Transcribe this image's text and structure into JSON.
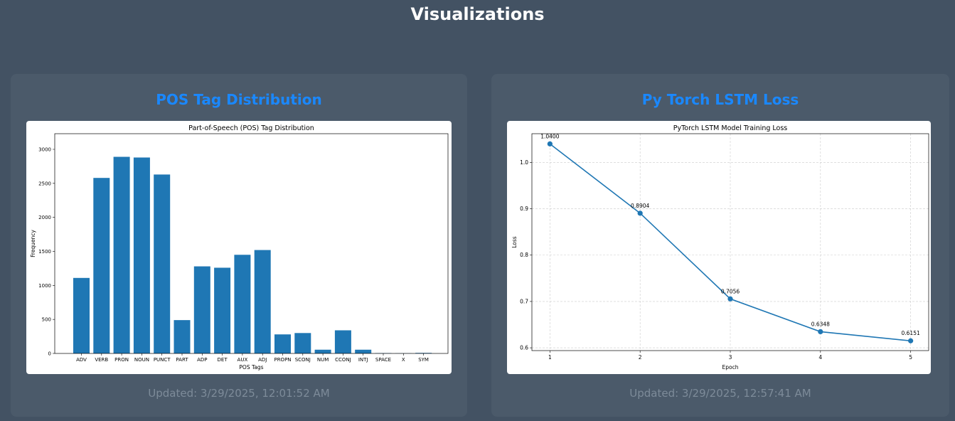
{
  "page": {
    "title": "Visualizations"
  },
  "cards": [
    {
      "title": "POS Tag Distribution",
      "updated": "Updated: 3/29/2025, 12:01:52 AM"
    },
    {
      "title": "Py Torch LSTM Loss",
      "updated": "Updated: 3/29/2025, 12:57:41 AM"
    }
  ],
  "chart_data": [
    {
      "type": "bar",
      "title": "Part-of-Speech (POS) Tag Distribution",
      "xlabel": "POS Tags",
      "ylabel": "Frequency",
      "categories": [
        "ADV",
        "VERB",
        "PRON",
        "NOUN",
        "PUNCT",
        "PART",
        "ADP",
        "DET",
        "AUX",
        "ADJ",
        "PROPN",
        "SCONJ",
        "NUM",
        "CCONJ",
        "INTJ",
        "SPACE",
        "X",
        "SYM"
      ],
      "values": [
        1110,
        2580,
        2890,
        2880,
        2630,
        490,
        1280,
        1260,
        1450,
        1520,
        280,
        300,
        55,
        340,
        55,
        5,
        2,
        8
      ],
      "ylim": [
        0,
        3230
      ],
      "yticks": [
        0,
        500,
        1000,
        1500,
        2000,
        2500,
        3000
      ],
      "color": "#1f77b4",
      "grid": false
    },
    {
      "type": "line",
      "title": "PyTorch LSTM Model Training Loss",
      "xlabel": "Epoch",
      "ylabel": "Loss",
      "x": [
        1,
        2,
        3,
        4,
        5
      ],
      "y": [
        1.04,
        0.8904,
        0.7056,
        0.6348,
        0.6151
      ],
      "data_labels": [
        "1.0400",
        "0.8904",
        "0.7056",
        "0.6348",
        "0.6151"
      ],
      "xlim": [
        0.8,
        5.2
      ],
      "ylim": [
        0.594,
        1.062
      ],
      "xticks": [
        1,
        2,
        3,
        4,
        5
      ],
      "yticks": [
        0.6,
        0.7,
        0.8,
        0.9,
        1.0
      ],
      "ytick_labels": [
        "0.6",
        "0.7",
        "0.8",
        "0.9",
        "1.0"
      ],
      "color": "#1f77b4",
      "grid": true
    }
  ]
}
